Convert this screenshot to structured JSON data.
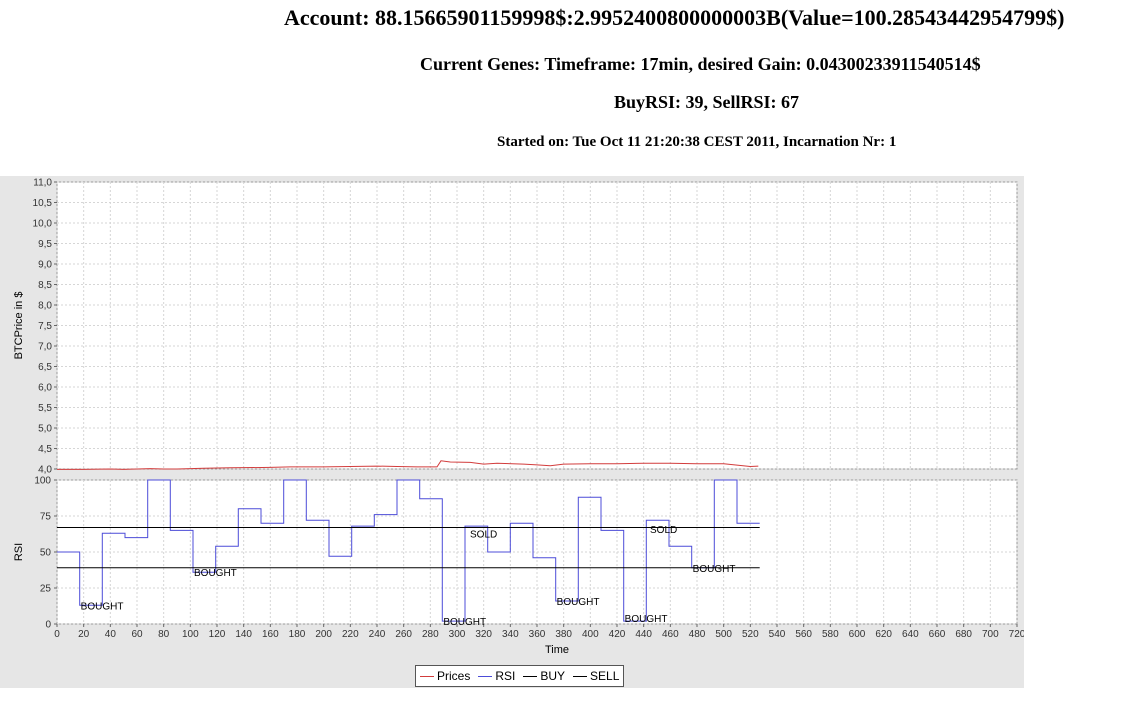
{
  "header": {
    "account": "Account: 88.15665901159998$:2.9952400800000003B(Value=100.28543442954799$)",
    "genes": "Current Genes: Timeframe: 17min, desired Gain: 0.04300233911540514$",
    "rsi_settings": "BuyRSI: 39, SellRSI: 67",
    "started": "Started on: Tue Oct 11 21:20:38 CEST 2011, Incarnation Nr: 1"
  },
  "colors": {
    "prices": "#d23c3c",
    "rsi": "#4c4cd8",
    "buy": "#000000",
    "sell": "#000000",
    "grid": "#d6d6d6"
  },
  "legend": [
    {
      "label": "Prices",
      "color": "#d23c3c"
    },
    {
      "label": "RSI",
      "color": "#4c4cd8"
    },
    {
      "label": "BUY",
      "color": "#000000"
    },
    {
      "label": "SELL",
      "color": "#000000"
    }
  ],
  "chart_data": [
    {
      "type": "line",
      "ylabel": "BTCPrice in $",
      "ylim": [
        4.0,
        11.0
      ],
      "yticks": [
        "4,0",
        "4,5",
        "5,0",
        "5,5",
        "6,0",
        "6,5",
        "7,0",
        "7,5",
        "8,0",
        "8,5",
        "9,0",
        "9,5",
        "10,0",
        "10,5",
        "11,0"
      ],
      "grid": true,
      "series": [
        {
          "name": "Prices",
          "color": "#d23c3c",
          "x": [
            0,
            20,
            40,
            50,
            60,
            70,
            80,
            90,
            100,
            110,
            130,
            160,
            175,
            200,
            220,
            240,
            255,
            270,
            285,
            288,
            295,
            310,
            320,
            330,
            350,
            360,
            370,
            380,
            400,
            420,
            440,
            460,
            480,
            500,
            520,
            526
          ],
          "y": [
            3.99,
            3.99,
            4.0,
            3.99,
            4.0,
            4.01,
            4.0,
            4.0,
            4.01,
            4.02,
            4.03,
            4.04,
            4.05,
            4.05,
            4.06,
            4.07,
            4.06,
            4.05,
            4.05,
            4.2,
            4.17,
            4.16,
            4.12,
            4.14,
            4.12,
            4.1,
            4.08,
            4.12,
            4.13,
            4.13,
            4.14,
            4.14,
            4.13,
            4.13,
            4.06,
            4.07
          ]
        }
      ]
    },
    {
      "type": "line",
      "ylabel": "RSI",
      "xlabel": "Time",
      "xlim": [
        0,
        720
      ],
      "ylim": [
        0,
        100
      ],
      "xticks": [
        0,
        20,
        40,
        60,
        80,
        100,
        120,
        140,
        160,
        180,
        200,
        220,
        240,
        260,
        280,
        300,
        320,
        340,
        360,
        380,
        400,
        420,
        440,
        460,
        480,
        500,
        520,
        540,
        560,
        580,
        600,
        620,
        640,
        660,
        680,
        700,
        720
      ],
      "yticks": [
        0,
        25,
        50,
        75,
        100
      ],
      "grid": true,
      "series": [
        {
          "name": "RSI",
          "color": "#4c4cd8",
          "step": true,
          "x": [
            0,
            17,
            34,
            51,
            68,
            85,
            102,
            119,
            136,
            153,
            170,
            187,
            204,
            221,
            238,
            255,
            272,
            289,
            306,
            323,
            340,
            357,
            374,
            391,
            408,
            425,
            442,
            459,
            476,
            493,
            510,
            527
          ],
          "y": [
            50,
            13,
            63,
            60,
            100,
            65,
            36,
            54,
            80,
            70,
            100,
            72,
            47,
            68,
            76,
            100,
            87,
            2,
            68,
            50,
            70,
            46,
            16,
            88,
            65,
            2,
            72,
            54,
            39,
            100,
            70,
            70
          ]
        },
        {
          "name": "BUY",
          "color": "#000000",
          "x": [
            0,
            527
          ],
          "y": [
            39,
            39
          ]
        },
        {
          "name": "SELL",
          "color": "#000000",
          "x": [
            0,
            527
          ],
          "y": [
            67,
            67
          ]
        }
      ],
      "annotations": [
        {
          "text": "BOUGHT",
          "x": 17,
          "y": 13
        },
        {
          "text": "BOUGHT",
          "x": 102,
          "y": 36
        },
        {
          "text": "BOUGHT",
          "x": 289,
          "y": 2
        },
        {
          "text": "SOLD",
          "x": 309,
          "y": 63
        },
        {
          "text": "BOUGHT",
          "x": 374,
          "y": 16
        },
        {
          "text": "BOUGHT",
          "x": 425,
          "y": 4
        },
        {
          "text": "SOLD",
          "x": 444,
          "y": 66
        },
        {
          "text": "BOUGHT",
          "x": 476,
          "y": 39
        }
      ]
    }
  ]
}
